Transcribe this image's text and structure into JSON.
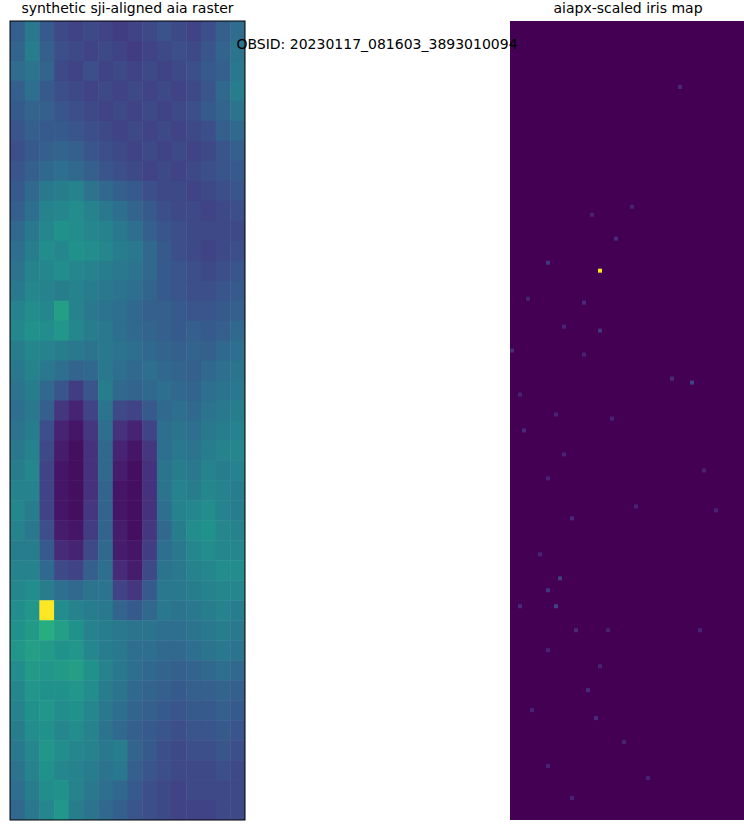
{
  "suptitle": "OBSID: 20230117_081603_3893010094",
  "chart_data": [
    {
      "type": "heatmap",
      "title": "synthetic sji-aligned aia raster",
      "tick_labels": false,
      "color": "viridis",
      "color_range": [
        0,
        1
      ],
      "cells": [
        [
          0.3,
          0.4,
          0.28,
          0.22,
          0.2,
          0.22,
          0.2,
          0.18,
          0.2,
          0.22,
          0.25,
          0.22,
          0.2,
          0.24,
          0.3,
          0.35
        ],
        [
          0.32,
          0.42,
          0.3,
          0.24,
          0.22,
          0.2,
          0.22,
          0.2,
          0.18,
          0.2,
          0.22,
          0.24,
          0.22,
          0.26,
          0.32,
          0.38
        ],
        [
          0.35,
          0.38,
          0.32,
          0.22,
          0.2,
          0.24,
          0.2,
          0.22,
          0.2,
          0.22,
          0.2,
          0.22,
          0.24,
          0.28,
          0.3,
          0.4
        ],
        [
          0.3,
          0.36,
          0.28,
          0.24,
          0.22,
          0.2,
          0.22,
          0.2,
          0.22,
          0.2,
          0.22,
          0.2,
          0.22,
          0.26,
          0.34,
          0.42
        ],
        [
          0.28,
          0.32,
          0.3,
          0.26,
          0.24,
          0.22,
          0.2,
          0.22,
          0.2,
          0.22,
          0.2,
          0.22,
          0.24,
          0.28,
          0.32,
          0.38
        ],
        [
          0.26,
          0.3,
          0.28,
          0.28,
          0.26,
          0.24,
          0.22,
          0.2,
          0.22,
          0.2,
          0.22,
          0.2,
          0.22,
          0.24,
          0.3,
          0.34
        ],
        [
          0.24,
          0.28,
          0.3,
          0.32,
          0.3,
          0.26,
          0.24,
          0.22,
          0.2,
          0.22,
          0.2,
          0.22,
          0.2,
          0.22,
          0.26,
          0.3
        ],
        [
          0.26,
          0.3,
          0.34,
          0.36,
          0.34,
          0.3,
          0.26,
          0.24,
          0.22,
          0.2,
          0.22,
          0.2,
          0.22,
          0.24,
          0.26,
          0.28
        ],
        [
          0.28,
          0.34,
          0.4,
          0.42,
          0.44,
          0.38,
          0.34,
          0.3,
          0.28,
          0.24,
          0.22,
          0.22,
          0.2,
          0.22,
          0.24,
          0.26
        ],
        [
          0.3,
          0.36,
          0.44,
          0.46,
          0.48,
          0.44,
          0.4,
          0.36,
          0.32,
          0.28,
          0.24,
          0.22,
          0.22,
          0.2,
          0.22,
          0.24
        ],
        [
          0.34,
          0.4,
          0.46,
          0.5,
          0.48,
          0.46,
          0.44,
          0.4,
          0.36,
          0.3,
          0.26,
          0.24,
          0.22,
          0.22,
          0.22,
          0.22
        ],
        [
          0.36,
          0.42,
          0.48,
          0.46,
          0.5,
          0.48,
          0.46,
          0.42,
          0.4,
          0.34,
          0.28,
          0.24,
          0.22,
          0.2,
          0.22,
          0.24
        ],
        [
          0.38,
          0.44,
          0.46,
          0.48,
          0.46,
          0.44,
          0.42,
          0.4,
          0.38,
          0.34,
          0.28,
          0.26,
          0.24,
          0.22,
          0.24,
          0.26
        ],
        [
          0.4,
          0.46,
          0.44,
          0.42,
          0.44,
          0.42,
          0.4,
          0.38,
          0.36,
          0.32,
          0.28,
          0.26,
          0.24,
          0.24,
          0.26,
          0.28
        ],
        [
          0.44,
          0.48,
          0.46,
          0.56,
          0.44,
          0.4,
          0.38,
          0.36,
          0.34,
          0.3,
          0.3,
          0.28,
          0.26,
          0.26,
          0.28,
          0.3
        ],
        [
          0.46,
          0.5,
          0.48,
          0.52,
          0.46,
          0.42,
          0.4,
          0.36,
          0.34,
          0.32,
          0.3,
          0.28,
          0.3,
          0.28,
          0.3,
          0.34
        ],
        [
          0.42,
          0.46,
          0.44,
          0.42,
          0.4,
          0.38,
          0.4,
          0.38,
          0.36,
          0.34,
          0.32,
          0.3,
          0.32,
          0.3,
          0.34,
          0.36
        ],
        [
          0.4,
          0.44,
          0.4,
          0.36,
          0.32,
          0.34,
          0.4,
          0.36,
          0.34,
          0.36,
          0.34,
          0.32,
          0.3,
          0.34,
          0.36,
          0.38
        ],
        [
          0.38,
          0.42,
          0.34,
          0.26,
          0.18,
          0.26,
          0.42,
          0.34,
          0.32,
          0.34,
          0.36,
          0.34,
          0.32,
          0.36,
          0.38,
          0.4
        ],
        [
          0.36,
          0.4,
          0.3,
          0.16,
          0.1,
          0.2,
          0.38,
          0.22,
          0.2,
          0.28,
          0.34,
          0.36,
          0.34,
          0.38,
          0.4,
          0.42
        ],
        [
          0.38,
          0.42,
          0.24,
          0.1,
          0.06,
          0.16,
          0.36,
          0.14,
          0.1,
          0.2,
          0.36,
          0.38,
          0.36,
          0.4,
          0.42,
          0.44
        ],
        [
          0.4,
          0.44,
          0.22,
          0.08,
          0.04,
          0.14,
          0.34,
          0.1,
          0.06,
          0.16,
          0.36,
          0.4,
          0.38,
          0.42,
          0.44,
          0.46
        ],
        [
          0.42,
          0.46,
          0.2,
          0.06,
          0.04,
          0.14,
          0.34,
          0.08,
          0.04,
          0.14,
          0.38,
          0.42,
          0.4,
          0.44,
          0.42,
          0.44
        ],
        [
          0.44,
          0.44,
          0.2,
          0.06,
          0.04,
          0.14,
          0.32,
          0.06,
          0.04,
          0.14,
          0.38,
          0.44,
          0.42,
          0.46,
          0.44,
          0.42
        ],
        [
          0.46,
          0.42,
          0.2,
          0.06,
          0.04,
          0.16,
          0.32,
          0.06,
          0.04,
          0.14,
          0.36,
          0.44,
          0.46,
          0.48,
          0.44,
          0.42
        ],
        [
          0.44,
          0.4,
          0.24,
          0.08,
          0.06,
          0.18,
          0.32,
          0.08,
          0.04,
          0.16,
          0.34,
          0.42,
          0.48,
          0.5,
          0.46,
          0.44
        ],
        [
          0.42,
          0.42,
          0.28,
          0.12,
          0.1,
          0.22,
          0.34,
          0.08,
          0.06,
          0.18,
          0.36,
          0.4,
          0.46,
          0.48,
          0.46,
          0.46
        ],
        [
          0.44,
          0.44,
          0.34,
          0.22,
          0.2,
          0.3,
          0.36,
          0.12,
          0.08,
          0.22,
          0.38,
          0.4,
          0.44,
          0.46,
          0.48,
          0.48
        ],
        [
          0.46,
          0.48,
          0.42,
          0.36,
          0.34,
          0.38,
          0.38,
          0.2,
          0.16,
          0.28,
          0.4,
          0.4,
          0.42,
          0.44,
          0.46,
          0.46
        ],
        [
          0.48,
          0.52,
          1.0,
          0.48,
          0.44,
          0.42,
          0.4,
          0.32,
          0.28,
          0.34,
          0.4,
          0.38,
          0.4,
          0.42,
          0.44,
          0.42
        ],
        [
          0.5,
          0.54,
          0.62,
          0.56,
          0.5,
          0.44,
          0.42,
          0.4,
          0.38,
          0.38,
          0.36,
          0.36,
          0.38,
          0.4,
          0.42,
          0.4
        ],
        [
          0.52,
          0.56,
          0.54,
          0.5,
          0.52,
          0.46,
          0.42,
          0.4,
          0.36,
          0.36,
          0.34,
          0.34,
          0.36,
          0.38,
          0.4,
          0.38
        ],
        [
          0.48,
          0.54,
          0.52,
          0.54,
          0.56,
          0.5,
          0.44,
          0.4,
          0.36,
          0.34,
          0.32,
          0.3,
          0.32,
          0.34,
          0.36,
          0.34
        ],
        [
          0.46,
          0.52,
          0.5,
          0.5,
          0.52,
          0.48,
          0.42,
          0.38,
          0.34,
          0.32,
          0.3,
          0.28,
          0.3,
          0.3,
          0.32,
          0.3
        ],
        [
          0.44,
          0.5,
          0.52,
          0.48,
          0.5,
          0.46,
          0.4,
          0.36,
          0.32,
          0.3,
          0.28,
          0.26,
          0.28,
          0.28,
          0.3,
          0.28
        ],
        [
          0.42,
          0.48,
          0.5,
          0.46,
          0.48,
          0.44,
          0.38,
          0.34,
          0.3,
          0.28,
          0.26,
          0.24,
          0.26,
          0.26,
          0.28,
          0.26
        ],
        [
          0.4,
          0.46,
          0.52,
          0.48,
          0.46,
          0.44,
          0.4,
          0.42,
          0.32,
          0.28,
          0.24,
          0.22,
          0.24,
          0.24,
          0.26,
          0.24
        ],
        [
          0.38,
          0.44,
          0.5,
          0.46,
          0.44,
          0.42,
          0.38,
          0.4,
          0.3,
          0.26,
          0.24,
          0.22,
          0.22,
          0.22,
          0.24,
          0.22
        ],
        [
          0.36,
          0.42,
          0.48,
          0.5,
          0.44,
          0.4,
          0.36,
          0.34,
          0.28,
          0.24,
          0.22,
          0.2,
          0.22,
          0.22,
          0.22,
          0.22
        ],
        [
          0.34,
          0.4,
          0.46,
          0.52,
          0.42,
          0.38,
          0.34,
          0.3,
          0.26,
          0.24,
          0.22,
          0.2,
          0.2,
          0.2,
          0.22,
          0.22
        ]
      ]
    },
    {
      "type": "heatmap",
      "title": "aiapx-scaled iris map",
      "tick_labels": false,
      "color": "viridis",
      "color_range": [
        0,
        1
      ],
      "shape": [
        200,
        59
      ],
      "background_value": 0,
      "nonzero_cells": [
        [
          22,
          62,
          1.0
        ],
        [
          42,
          16,
          0.12
        ],
        [
          9,
          60,
          0.15
        ],
        [
          20,
          48,
          0.1
        ],
        [
          30,
          46,
          0.1
        ],
        [
          26,
          54,
          0.12
        ],
        [
          4,
          69,
          0.1
        ],
        [
          18,
          70,
          0.12
        ],
        [
          22,
          77,
          0.15
        ],
        [
          13,
          76,
          0.1
        ],
        [
          0,
          82,
          0.12
        ],
        [
          18,
          83,
          0.1
        ],
        [
          40,
          89,
          0.12
        ],
        [
          45,
          90,
          0.2
        ],
        [
          2,
          93,
          0.1
        ],
        [
          11,
          98,
          0.1
        ],
        [
          3,
          102,
          0.12
        ],
        [
          25,
          99,
          0.1
        ],
        [
          13,
          108,
          0.1
        ],
        [
          48,
          112,
          0.1
        ],
        [
          9,
          114,
          0.1
        ],
        [
          51,
          122,
          0.1
        ],
        [
          15,
          124,
          0.12
        ],
        [
          31,
          121,
          0.1
        ],
        [
          7,
          133,
          0.1
        ],
        [
          12,
          139,
          0.18
        ],
        [
          9,
          142,
          0.15
        ],
        [
          11,
          146,
          0.2
        ],
        [
          2,
          146,
          0.12
        ],
        [
          16,
          152,
          0.12
        ],
        [
          24,
          152,
          0.1
        ],
        [
          9,
          157,
          0.1
        ],
        [
          22,
          161,
          0.1
        ],
        [
          19,
          167,
          0.12
        ],
        [
          21,
          174,
          0.12
        ],
        [
          28,
          180,
          0.1
        ],
        [
          9,
          186,
          0.1
        ],
        [
          15,
          194,
          0.1
        ],
        [
          34,
          189,
          0.1
        ],
        [
          47,
          152,
          0.1
        ],
        [
          5,
          172,
          0.1
        ]
      ]
    }
  ]
}
